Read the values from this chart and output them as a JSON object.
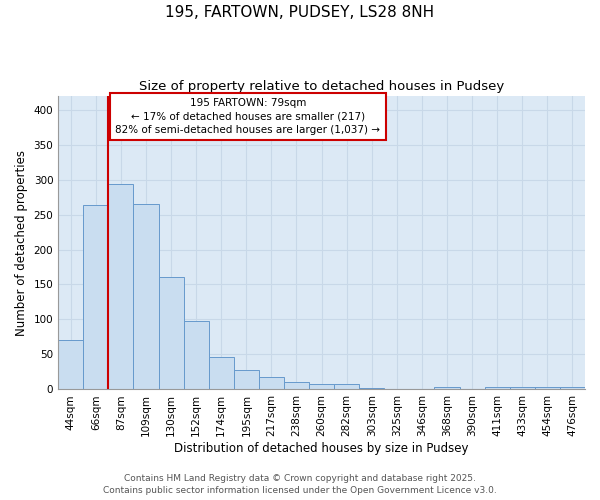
{
  "title1": "195, FARTOWN, PUDSEY, LS28 8NH",
  "title2": "Size of property relative to detached houses in Pudsey",
  "xlabel": "Distribution of detached houses by size in Pudsey",
  "ylabel": "Number of detached properties",
  "categories": [
    "44sqm",
    "66sqm",
    "87sqm",
    "109sqm",
    "130sqm",
    "152sqm",
    "174sqm",
    "195sqm",
    "217sqm",
    "238sqm",
    "260sqm",
    "282sqm",
    "303sqm",
    "325sqm",
    "346sqm",
    "368sqm",
    "390sqm",
    "411sqm",
    "433sqm",
    "454sqm",
    "476sqm"
  ],
  "values": [
    70,
    263,
    293,
    265,
    160,
    98,
    47,
    28,
    18,
    10,
    8,
    8,
    2,
    0,
    0,
    4,
    0,
    4,
    4,
    4,
    4
  ],
  "bar_color": "#c9ddf0",
  "bar_edge_color": "#6699cc",
  "vline_x": 1.5,
  "vline_color": "#cc0000",
  "annotation_text": "195 FARTOWN: 79sqm\n← 17% of detached houses are smaller (217)\n82% of semi-detached houses are larger (1,037) →",
  "annotation_box_color": "#ffffff",
  "annotation_box_edge_color": "#cc0000",
  "ylim": [
    0,
    420
  ],
  "yticks": [
    0,
    50,
    100,
    150,
    200,
    250,
    300,
    350,
    400
  ],
  "grid_color": "#c8d8e8",
  "plot_bg_color": "#dce9f5",
  "fig_bg_color": "#ffffff",
  "footer1": "Contains HM Land Registry data © Crown copyright and database right 2025.",
  "footer2": "Contains public sector information licensed under the Open Government Licence v3.0.",
  "title_fontsize": 11,
  "subtitle_fontsize": 9.5,
  "axis_label_fontsize": 8.5,
  "tick_fontsize": 7.5,
  "annotation_fontsize": 7.5,
  "footer_fontsize": 6.5
}
